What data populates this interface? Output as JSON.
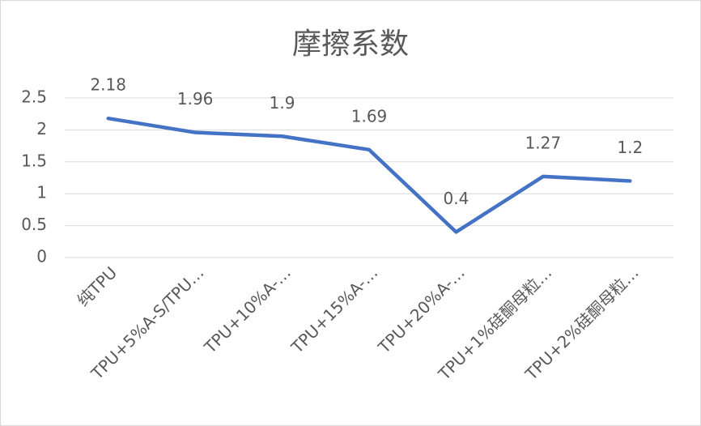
{
  "chart_data": {
    "type": "line",
    "title": "摩擦系数",
    "categories": [
      "纯TPU",
      "TPU+5%A-S/TPU…",
      "TPU+10%A-…",
      "TPU+15%A-…",
      "TPU+20%A-…",
      "TPU+1%硅酮母粒…",
      "TPU+2%硅酮母粒…"
    ],
    "series": [
      {
        "name": "摩擦系数",
        "color": "#4472c4",
        "values": [
          2.18,
          1.96,
          1.9,
          1.69,
          0.4,
          1.27,
          1.2
        ]
      }
    ],
    "ylim": [
      0,
      2.5
    ],
    "yticks": [
      0,
      0.5,
      1,
      1.5,
      2,
      2.5
    ],
    "grid": true
  }
}
